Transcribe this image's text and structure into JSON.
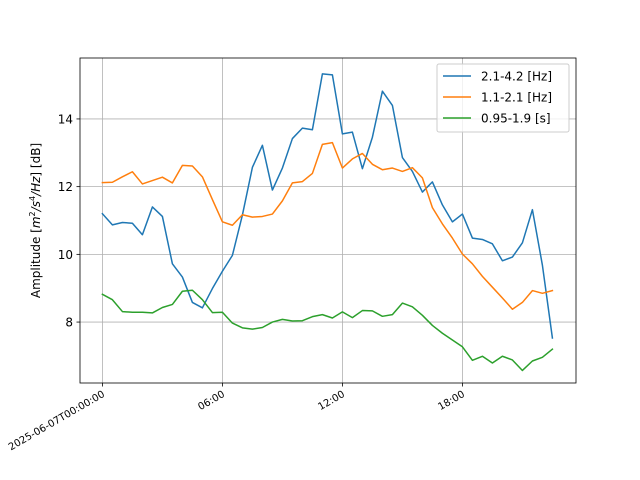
{
  "chart_data": {
    "type": "line",
    "title": "",
    "xlabel": "",
    "ylabel": "Amplitude [m²/s⁴/Hz] [dB]",
    "ylabel_parts": {
      "pre": "Amplitude [",
      "m": "m",
      "e1": "2",
      "s": "/s",
      "e2": "4",
      "hz": "/Hz",
      "post": "] [dB]"
    },
    "x_ticks": [
      {
        "hour": 0,
        "label": "2025-06-07T00:00:00"
      },
      {
        "hour": 6,
        "label": "06:00"
      },
      {
        "hour": 12,
        "label": "12:00"
      },
      {
        "hour": 18,
        "label": "18:00"
      }
    ],
    "y_ticks": [
      8,
      10,
      12,
      14
    ],
    "xlim_hours": [
      -1.12,
      23.68
    ],
    "ylim": [
      6.2,
      15.8
    ],
    "grid": true,
    "legend_position": "top-right",
    "x_hours": [
      0,
      0.5,
      1,
      1.5,
      2,
      2.5,
      3,
      3.5,
      4,
      4.5,
      5,
      5.5,
      6,
      6.5,
      7,
      7.5,
      8,
      8.5,
      9,
      9.5,
      10,
      10.5,
      11,
      11.5,
      12,
      12.5,
      13,
      13.5,
      14,
      14.5,
      15,
      15.5,
      16,
      16.5,
      17,
      17.5,
      18,
      18.5,
      19,
      19.5,
      20,
      20.5,
      21,
      21.5,
      22,
      22.5
    ],
    "series": [
      {
        "name": "2.1-4.2 [Hz]",
        "color": "#1f77b4",
        "values": [
          11.2,
          10.87,
          10.94,
          10.92,
          10.58,
          11.4,
          11.12,
          9.72,
          9.33,
          8.58,
          8.42,
          8.99,
          9.5,
          9.97,
          11.16,
          12.57,
          13.22,
          11.9,
          12.55,
          13.42,
          13.73,
          13.68,
          15.33,
          15.3,
          13.56,
          13.61,
          12.53,
          13.46,
          14.82,
          14.4,
          12.86,
          12.45,
          11.84,
          12.14,
          11.46,
          10.96,
          11.19,
          10.48,
          10.44,
          10.31,
          9.81,
          9.92,
          10.34,
          11.32,
          9.68,
          7.53
        ]
      },
      {
        "name": "1.1-2.1 [Hz]",
        "color": "#ff7f0e",
        "values": [
          12.12,
          12.13,
          12.29,
          12.44,
          12.08,
          12.18,
          12.28,
          12.11,
          12.63,
          12.61,
          12.29,
          11.62,
          10.96,
          10.86,
          11.17,
          11.1,
          11.12,
          11.19,
          11.58,
          12.11,
          12.15,
          12.39,
          13.25,
          13.3,
          12.55,
          12.82,
          12.98,
          12.66,
          12.5,
          12.55,
          12.45,
          12.56,
          12.26,
          11.38,
          10.9,
          10.48,
          10.01,
          9.72,
          9.35,
          9.03,
          8.71,
          8.38,
          8.58,
          8.93,
          8.85,
          8.93
        ]
      },
      {
        "name": "0.95-1.9 [s]",
        "color": "#2ca02c",
        "values": [
          8.82,
          8.66,
          8.31,
          8.29,
          8.29,
          8.27,
          8.43,
          8.52,
          8.91,
          8.94,
          8.66,
          8.28,
          8.29,
          7.97,
          7.83,
          7.79,
          7.84,
          8.0,
          8.08,
          8.03,
          8.04,
          8.16,
          8.22,
          8.12,
          8.3,
          8.13,
          8.34,
          8.33,
          8.17,
          8.22,
          8.56,
          8.45,
          8.2,
          7.9,
          7.67,
          7.47,
          7.27,
          6.87,
          6.99,
          6.79,
          6.99,
          6.88,
          6.57,
          6.85,
          6.96,
          7.2
        ]
      }
    ]
  }
}
